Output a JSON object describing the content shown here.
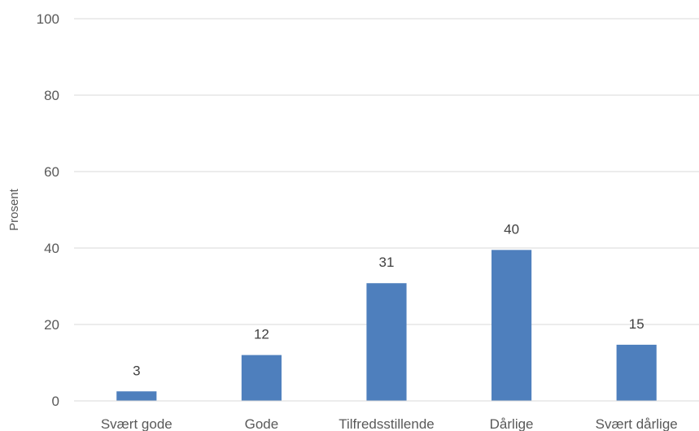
{
  "chart_data": {
    "type": "bar",
    "categories": [
      "Svært gode",
      "Gode",
      "Tilfredsstillende",
      "Dårlige",
      "Svært dårlige"
    ],
    "values": [
      2.5,
      12,
      30.8,
      39.5,
      14.7
    ],
    "data_labels": [
      "3",
      "12",
      "31",
      "40",
      "15"
    ],
    "title": "",
    "xlabel": "",
    "ylabel": "Prosent",
    "ylim": [
      0,
      100
    ],
    "yticks": [
      0,
      20,
      40,
      60,
      80,
      100
    ],
    "grid": true,
    "legend": "none",
    "bar_color": "#4e7fbd"
  }
}
